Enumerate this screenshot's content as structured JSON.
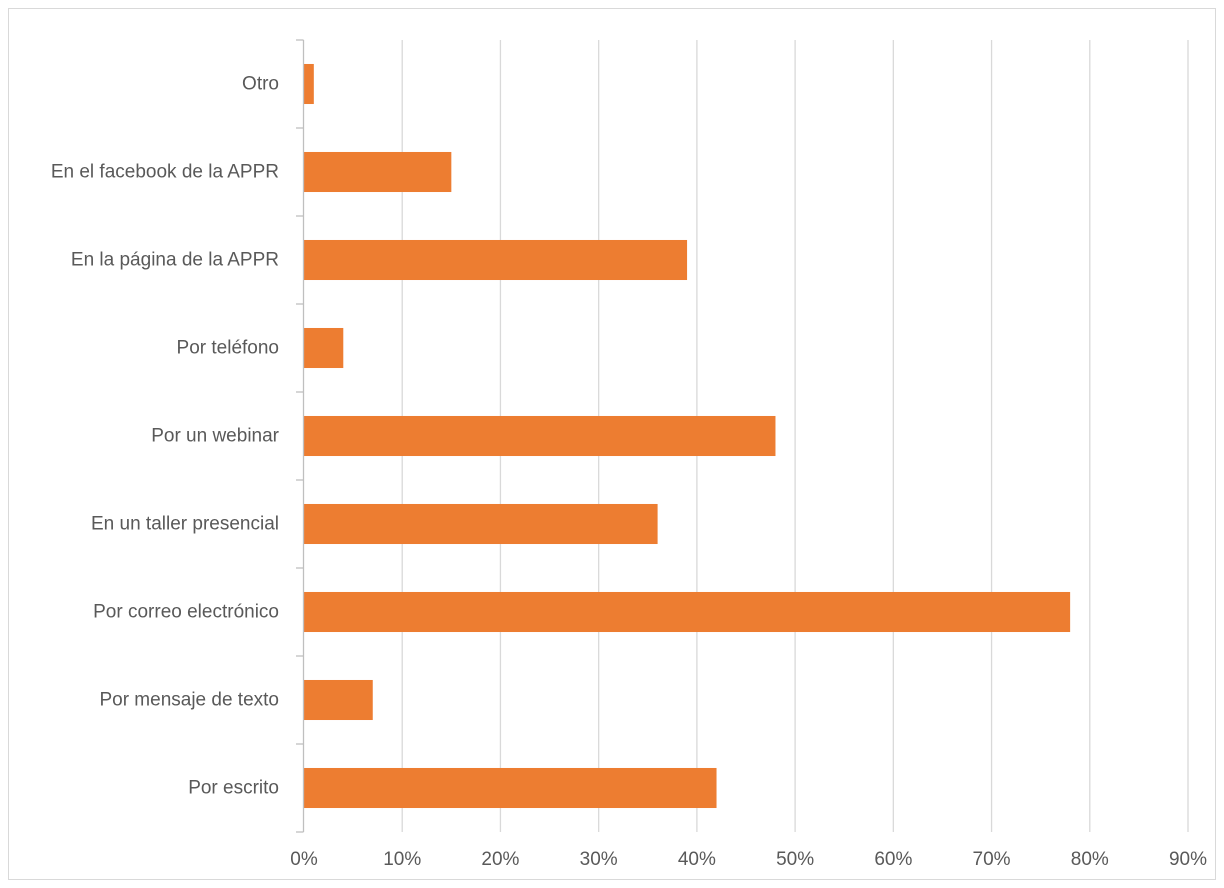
{
  "chart_data": {
    "type": "bar",
    "orientation": "horizontal",
    "title": "",
    "xlabel": "",
    "ylabel": "",
    "categories": [
      "Por escrito",
      "Por mensaje de texto",
      "Por correo electrónico",
      "En un taller presencial",
      "Por un webinar",
      "Por teléfono",
      "En la página de la APPR",
      "En el facebook de la APPR",
      "Otro"
    ],
    "values": [
      42,
      7,
      78,
      36,
      48,
      4,
      39,
      15,
      1
    ],
    "xlim": [
      0,
      90
    ],
    "xticks": [
      0,
      10,
      20,
      30,
      40,
      50,
      60,
      70,
      80,
      90
    ],
    "xtick_labels": [
      "0%",
      "10%",
      "20%",
      "30%",
      "40%",
      "50%",
      "60%",
      "70%",
      "80%",
      "90%"
    ],
    "grid": "vertical",
    "legend": "none",
    "colors": {
      "bar": "#ED7D31",
      "grid": "#d9d9d9",
      "axis": "#bfbfbf",
      "text": "#595959"
    }
  }
}
